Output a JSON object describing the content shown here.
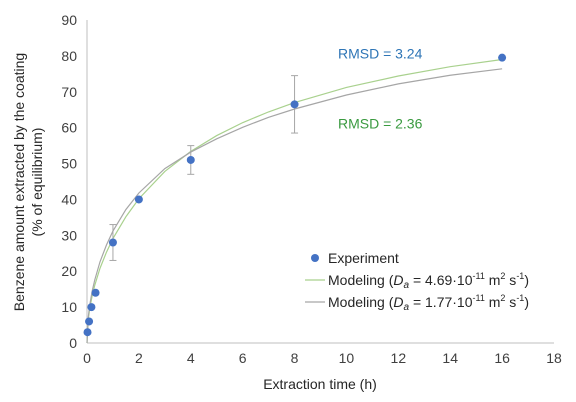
{
  "chart_data": {
    "type": "scatter",
    "xlabel": "Extraction time (h)",
    "ylabel_line1": "Benzene amount extracted by the coating",
    "ylabel_line2": "(% of equilibrium)",
    "xlim": [
      0,
      18
    ],
    "ylim": [
      0,
      90
    ],
    "x_ticks": [
      0,
      2,
      4,
      6,
      8,
      10,
      12,
      14,
      16,
      18
    ],
    "y_ticks": [
      0,
      10,
      20,
      30,
      40,
      50,
      60,
      70,
      80,
      90
    ],
    "grid": false,
    "legend_position": "center-right",
    "series": [
      {
        "name": "Experiment",
        "kind": "points",
        "color": "#4472C4",
        "x": [
          0.02,
          0.08,
          0.17,
          0.33,
          1,
          2,
          4,
          8,
          16
        ],
        "y": [
          3,
          6,
          10,
          14,
          28,
          40,
          51,
          66.5,
          79.5
        ],
        "error": [
          0,
          0,
          0,
          0,
          5,
          0,
          4,
          8,
          0
        ]
      },
      {
        "name_prefix": "Modeling (",
        "name_var": "D",
        "name_sub": "a",
        "name_mid": " = 4.69·10",
        "name_exp": "-11",
        "name_unit1": " m",
        "name_unit_exp1": "2",
        "name_unit2": " s",
        "name_unit_exp2": "-1",
        "name_suffix": ")",
        "kind": "curve",
        "color": "#A9D18E",
        "x": [
          0,
          0.05,
          0.1,
          0.2,
          0.3,
          0.5,
          0.75,
          1,
          1.5,
          2,
          3,
          4,
          5,
          6,
          7,
          8,
          10,
          12,
          14,
          16
        ],
        "y": [
          0,
          6.6,
          9.4,
          13.2,
          16.1,
          20.8,
          25.3,
          29.1,
          35.2,
          40.2,
          47.8,
          53.4,
          57.8,
          61.4,
          64.4,
          67.0,
          71.2,
          74.4,
          77.0,
          79.0
        ]
      },
      {
        "name_prefix": "Modeling (",
        "name_var": "D",
        "name_sub": "a",
        "name_mid": " = 1.77·10",
        "name_exp": "-11",
        "name_unit1": " m",
        "name_unit_exp1": "2",
        "name_unit2": " s",
        "name_unit_exp2": "-1",
        "name_suffix": ")",
        "kind": "curve",
        "color": "#A6A6A6",
        "x": [
          0,
          0.05,
          0.1,
          0.2,
          0.3,
          0.5,
          0.75,
          1,
          1.5,
          2,
          3,
          4,
          5,
          6,
          7,
          8,
          10,
          12,
          14,
          16
        ],
        "y": [
          0,
          7.3,
          10.3,
          14.5,
          17.6,
          22.6,
          27.3,
          31.2,
          37.2,
          41.8,
          48.6,
          53.2,
          56.9,
          60.1,
          62.9,
          65.2,
          69.1,
          72.2,
          74.6,
          76.4
        ]
      }
    ],
    "annotations": [
      {
        "text": "RMSD = 3.24",
        "color": "#2E75B6",
        "x": 11.3,
        "y": 79.3
      },
      {
        "text": "RMSD = 2.36",
        "color": "#3A9A40",
        "x": 11.3,
        "y": 59.8
      }
    ]
  }
}
